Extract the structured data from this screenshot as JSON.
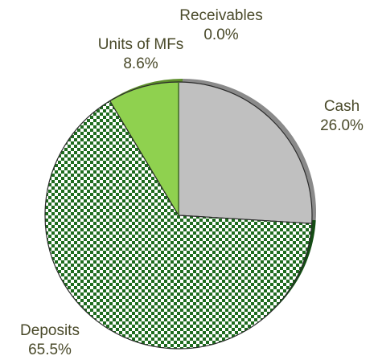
{
  "chart_data": {
    "type": "pie",
    "title": "",
    "slices": [
      {
        "label": "Cash",
        "value_text": "26.0%",
        "value": 26.0,
        "color": "#c0c0c0",
        "side_color": "#8a8a8a",
        "pattern": "solid"
      },
      {
        "label": "Deposits",
        "value_text": "65.5%",
        "value": 65.5,
        "color": "#1e6b1e",
        "side_color": "#154d15",
        "pattern": "checkerboard"
      },
      {
        "label": "Units of MFs",
        "value_text": "8.6%",
        "value": 8.6,
        "color": "#8fd14f",
        "side_color": "#5e8f2c",
        "pattern": "solid"
      },
      {
        "label": "Receivables",
        "value_text": "0.0%",
        "value": 0.0,
        "color": "#4a7a2a",
        "side_color": "#3a5f20",
        "pattern": "solid"
      }
    ],
    "start_angle_deg": 0,
    "direction": "clockwise",
    "legend": "none"
  }
}
